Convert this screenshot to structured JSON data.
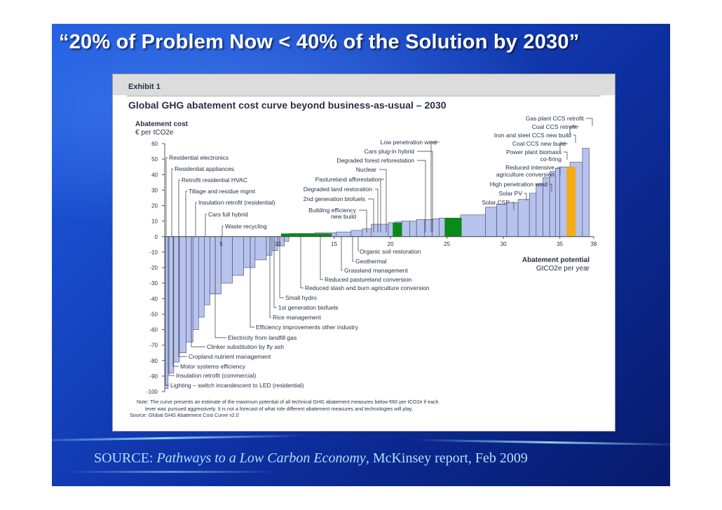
{
  "slide": {
    "title": "“20% of Problem Now < 40% of the Solution by 2030”",
    "source_prefix": "SOURCE: ",
    "source_title": "Pathways to a Low Carbon Economy",
    "source_suffix": ", McKinsey report, Feb 2009"
  },
  "chart_data": {
    "type": "bar",
    "exhibit": "Exhibit 1",
    "title": "Global GHG abatement cost curve beyond business-as-usual – 2030",
    "ylabel": "Abatement cost",
    "yunit": "€ per tCO2e",
    "xlabel": "Abatement potential",
    "xunit": "GtCO2e per year",
    "ylim": [
      -100,
      60
    ],
    "xlim": [
      0,
      38
    ],
    "yticks": [
      "60",
      "50",
      "40",
      "30",
      "20",
      "10",
      "0",
      "-10",
      "-20",
      "-30",
      "-40",
      "-50",
      "-60",
      "-70",
      "-80",
      "-90",
      "-100"
    ],
    "xticks": [
      "5",
      "10",
      "15",
      "20",
      "25",
      "30",
      "35",
      "38"
    ],
    "measures": [
      {
        "name": "Lighting – switch incandescent to LED (residential)",
        "x0": 0.0,
        "x1": 0.3,
        "cost": -98
      },
      {
        "name": "Insulation retrofit (commercial)",
        "x0": 0.3,
        "x1": 0.8,
        "cost": -88
      },
      {
        "name": "Motor systems efficiency",
        "x0": 0.8,
        "x1": 1.3,
        "cost": -81
      },
      {
        "name": "Cropland nutrient management",
        "x0": 1.3,
        "x1": 1.9,
        "cost": -75
      },
      {
        "name": "Clinker substitution by fly ash",
        "x0": 1.9,
        "x1": 2.5,
        "cost": -68
      },
      {
        "name": "",
        "x0": 2.5,
        "x1": 3.0,
        "cost": -60
      },
      {
        "name": "Electricity from landfill gas",
        "x0": 3.0,
        "x1": 3.5,
        "cost": -52
      },
      {
        "name": "",
        "x0": 3.5,
        "x1": 4.0,
        "cost": -44
      },
      {
        "name": "Efficiency improvements other industry",
        "x0": 4.0,
        "x1": 5.0,
        "cost": -37
      },
      {
        "name": "",
        "x0": 5.0,
        "x1": 6.0,
        "cost": -30
      },
      {
        "name": "",
        "x0": 6.0,
        "x1": 7.0,
        "cost": -25
      },
      {
        "name": "",
        "x0": 7.0,
        "x1": 8.0,
        "cost": -20
      },
      {
        "name": "Rice management",
        "x0": 8.0,
        "x1": 9.0,
        "cost": -15
      },
      {
        "name": "1st generation biofuels",
        "x0": 9.0,
        "x1": 9.5,
        "cost": -12
      },
      {
        "name": "Small hydro",
        "x0": 9.5,
        "x1": 10.0,
        "cost": -9
      },
      {
        "name": "",
        "x0": 10.0,
        "x1": 10.6,
        "cost": -6
      },
      {
        "name": "",
        "x0": 10.6,
        "x1": 11.0,
        "cost": -3
      },
      {
        "name": "Reduced slash and burn agriculture conversion",
        "x0": 11.0,
        "x1": 13.3,
        "cost": 2
      },
      {
        "name": "Reduced pastureland conversion",
        "x0": 13.3,
        "x1": 15.2,
        "cost": 2.5
      },
      {
        "name": "Grassland management",
        "x0": 15.2,
        "x1": 16.5,
        "cost": 3
      },
      {
        "name": "Geothermal",
        "x0": 16.5,
        "x1": 17.5,
        "cost": 4
      },
      {
        "name": "Organic soil restoration",
        "x0": 17.5,
        "x1": 18.3,
        "cost": 5
      },
      {
        "name": "Building efficiency new build",
        "x0": 18.3,
        "x1": 19.8,
        "cost": 8
      },
      {
        "name": "2nd generation biofuels",
        "x0": 19.8,
        "x1": 20.4,
        "cost": 9
      },
      {
        "name": "Degraded land restoration",
        "x0": 20.4,
        "x1": 21.0,
        "cost": 9.5
      },
      {
        "name": "Pastureland afforestation",
        "x0": 21.0,
        "x1": 21.7,
        "cost": 10
      },
      {
        "name": "Nuclear",
        "x0": 21.7,
        "x1": 22.3,
        "cost": 10
      },
      {
        "name": "Degraded forest reforestation",
        "x0": 22.3,
        "x1": 23.0,
        "cost": 11
      },
      {
        "name": "Cars plug-in hybrid",
        "x0": 23.0,
        "x1": 23.7,
        "cost": 11
      },
      {
        "name": "Low penetration wind",
        "x0": 23.7,
        "x1": 24.3,
        "cost": 11.5
      },
      {
        "name": "",
        "x0": 24.3,
        "x1": 26.2,
        "cost": 12
      },
      {
        "name": "Solar CSP",
        "x0": 26.2,
        "x1": 28.4,
        "cost": 14
      },
      {
        "name": "Solar PV",
        "x0": 28.4,
        "x1": 29.4,
        "cost": 19
      },
      {
        "name": "High penetration wind",
        "x0": 29.4,
        "x1": 30.3,
        "cost": 21
      },
      {
        "name": "Reduced intensive agriculture conversion",
        "x0": 30.3,
        "x1": 31.3,
        "cost": 22
      },
      {
        "name": "Power plant biomass co-firing",
        "x0": 31.3,
        "x1": 32.3,
        "cost": 24
      },
      {
        "name": "",
        "x0": 32.3,
        "x1": 32.9,
        "cost": 28
      },
      {
        "name": "Coal CCS new build",
        "x0": 32.9,
        "x1": 33.5,
        "cost": 34
      },
      {
        "name": "Iron and steel CCS new build",
        "x0": 33.5,
        "x1": 34.1,
        "cost": 38
      },
      {
        "name": "Coal CCS retrofit",
        "x0": 34.1,
        "x1": 34.6,
        "cost": 42
      },
      {
        "name": "",
        "x0": 34.6,
        "x1": 35.0,
        "cost": 44
      },
      {
        "name": "",
        "x0": 35.0,
        "x1": 35.9,
        "cost": 45
      },
      {
        "name": "",
        "x0": 35.9,
        "x1": 37.0,
        "cost": 48
      },
      {
        "name": "Gas plant CCS retrofit",
        "x0": 37.0,
        "x1": 37.6,
        "cost": 57
      }
    ],
    "highlights": [
      {
        "color": "#0a8a17",
        "x0": 10.3,
        "x1": 14.8,
        "cost": 2
      },
      {
        "color": "#0a8a17",
        "x0": 20.2,
        "x1": 21.0,
        "cost": 9
      },
      {
        "color": "#0a8a17",
        "x0": 24.8,
        "x1": 26.3,
        "cost": 12
      },
      {
        "color": "#f3ac16",
        "x0": 35.6,
        "x1": 36.4,
        "cost": 45
      }
    ],
    "left_labels": [
      "Residential electronics",
      "Residential appliances",
      "Retrofit residential HVAC",
      "Tillage and residue mgmt",
      "Insulation retrofit (residential)",
      "Cars full hybrid",
      "Waste recycling"
    ],
    "bottom_labels": [
      "Lighting – switch incandescent to LED (residential)",
      "Insulation retrofit (commercial)",
      "Motor systems efficiency",
      "Cropland nutrient management",
      "Clinker substitution by fly ash",
      "Electricity from landfill gas",
      "Efficiency improvements other industry",
      "Rice management",
      "1st generation biofuels",
      "Small hydro",
      "Reduced slash and burn agriculture conversion",
      "Reduced pastureland conversion",
      "Grassland management",
      "Geothermal",
      "Organic soil restoration"
    ],
    "mid_labels": [
      "Low penetration wind",
      "Cars plug-in hybrid",
      "Degraded forest reforestation",
      "Nuclear",
      "Pastureland afforestation",
      "Degraded land restoration",
      "2nd generation biofuels",
      "Building efficiency",
      "new build"
    ],
    "right_labels": [
      "Gas plant CCS retrofit",
      "Coal CCS retrofit",
      "Iron and steel CCS new build",
      "Coal CCS new build",
      "Power plant biomass",
      "co-firing",
      "Reduced intensive",
      "agriculture conversion",
      "High penetration wind",
      "Solar PV",
      "Solar CSP"
    ],
    "note_lines": [
      "Note: The curve presents an estimate of the maximum potential of all technical GHG abatement measures below €60 per tCO2e if each",
      "lever was pursued aggressively. It is not a forecast of what role different abatement measures and technologies will play.",
      "Source: Global GHG Abatement Cost Curve v2.0"
    ],
    "colors": {
      "bar": "#b7c3ec",
      "bar_edge": "#3d4577",
      "header_band": "#dcdcdc",
      "text": "#2a2e48"
    }
  }
}
